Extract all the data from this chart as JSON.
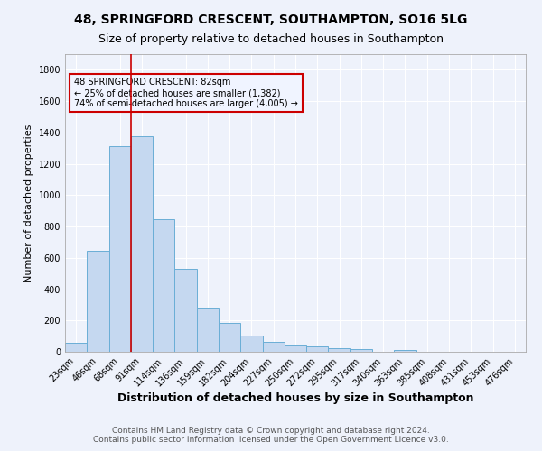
{
  "title": "48, SPRINGFORD CRESCENT, SOUTHAMPTON, SO16 5LG",
  "subtitle": "Size of property relative to detached houses in Southampton",
  "xlabel": "Distribution of detached houses by size in Southampton",
  "ylabel": "Number of detached properties",
  "footer_line1": "Contains HM Land Registry data © Crown copyright and database right 2024.",
  "footer_line2": "Contains public sector information licensed under the Open Government Licence v3.0.",
  "bar_labels": [
    "23sqm",
    "46sqm",
    "68sqm",
    "91sqm",
    "114sqm",
    "136sqm",
    "159sqm",
    "182sqm",
    "204sqm",
    "227sqm",
    "250sqm",
    "272sqm",
    "295sqm",
    "317sqm",
    "340sqm",
    "363sqm",
    "385sqm",
    "408sqm",
    "431sqm",
    "453sqm",
    "476sqm"
  ],
  "bar_values": [
    55,
    645,
    1310,
    1375,
    845,
    530,
    275,
    185,
    105,
    65,
    40,
    35,
    25,
    15,
    0,
    10,
    0,
    0,
    0,
    0,
    0
  ],
  "bar_color": "#c5d8f0",
  "bar_edgecolor": "#6aaed6",
  "vline_x": 2.5,
  "vline_color": "#cc0000",
  "annotation_text": "48 SPRINGFORD CRESCENT: 82sqm\n← 25% of detached houses are smaller (1,382)\n74% of semi-detached houses are larger (4,005) →",
  "annotation_box_edgecolor": "#cc0000",
  "annotation_box_facecolor": "#f0f4ff",
  "ylim": [
    0,
    1900
  ],
  "yticks": [
    0,
    200,
    400,
    600,
    800,
    1000,
    1200,
    1400,
    1600,
    1800
  ],
  "bg_color": "#eef2fb",
  "grid_color": "#ffffff",
  "title_fontsize": 10,
  "subtitle_fontsize": 9,
  "xlabel_fontsize": 9,
  "ylabel_fontsize": 8,
  "tick_fontsize": 7,
  "annotation_fontsize": 7,
  "footer_fontsize": 6.5
}
